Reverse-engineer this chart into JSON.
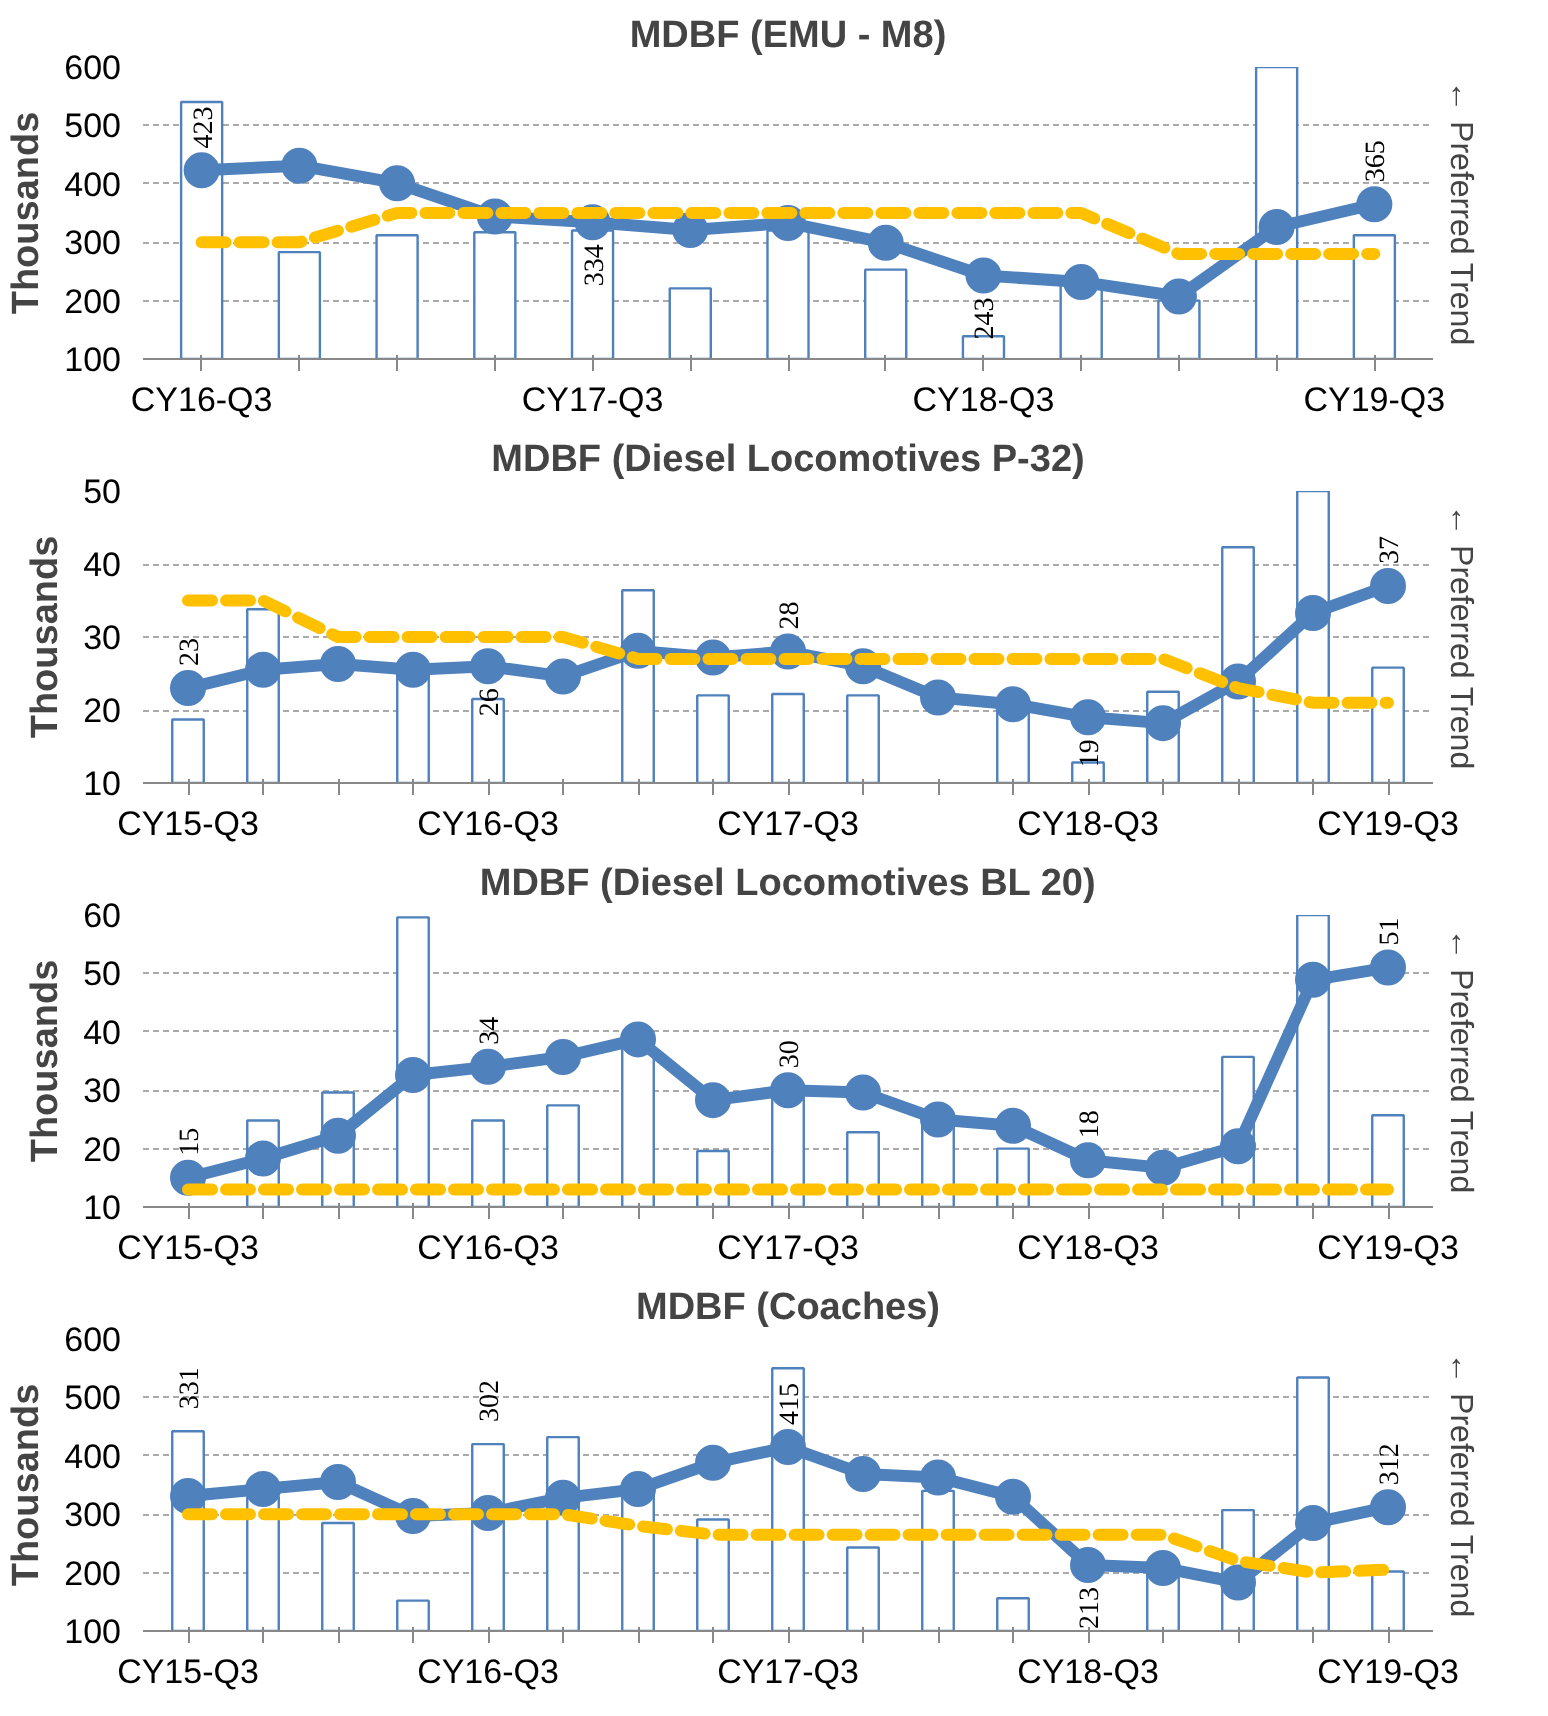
{
  "chart_data": [
    {
      "type": "bar",
      "title": "MDBF (EMU - M8)",
      "ylabel": "Thousands",
      "categories": [
        "CY16-Q3",
        null,
        null,
        null,
        "CY17-Q3",
        null,
        null,
        null,
        "CY18-Q3",
        null,
        null,
        null,
        "CY19-Q3"
      ],
      "ylim": [
        100,
        600
      ],
      "yticks": [
        100,
        200,
        300,
        400,
        500,
        600
      ],
      "grid": "y",
      "annotations": [
        "← Preferred Trend"
      ],
      "series": [
        {
          "color": "#4f81bd",
          "values": [
            540,
            283,
            312,
            317,
            320,
            221,
            320,
            253,
            139,
            230,
            200,
            600,
            312
          ]
        },
        {
          "type": "line",
          "color": "#4f81bd",
          "marker": "circle",
          "values": [
            423,
            431,
            401,
            344,
            334,
            321,
            333,
            299,
            243,
            232,
            207,
            326,
            365
          ],
          "value_labels": [
            "423",
            null,
            null,
            null,
            "334",
            null,
            null,
            null,
            "243",
            null,
            null,
            null,
            "365"
          ]
        },
        {
          "type": "line",
          "color": "#ffc000",
          "line_style": "dashed",
          "values": [
            300,
            300,
            350,
            350,
            350,
            350,
            350,
            350,
            350,
            350,
            280,
            280,
            280
          ]
        }
      ]
    },
    {
      "type": "bar",
      "title": "MDBF (Diesel Locomotives P-32)",
      "ylabel": "Thousands",
      "categories": [
        "CY15-Q3",
        null,
        null,
        null,
        "CY16-Q3",
        null,
        null,
        null,
        "CY17-Q3",
        null,
        null,
        null,
        "CY18-Q3",
        null,
        null,
        null,
        "CY19-Q3"
      ],
      "ylim": [
        10,
        50
      ],
      "yticks": [
        10,
        20,
        30,
        40,
        50
      ],
      "grid": "y",
      "annotations": [
        "← Preferred Trend"
      ],
      "series": [
        {
          "color": "#4f81bd",
          "values": [
            18.7,
            33.8,
            null,
            25,
            21.5,
            null,
            36.4,
            22,
            22.2,
            22,
            null,
            20,
            12.8,
            22.5,
            42.3,
            50,
            25.8
          ]
        },
        {
          "type": "line",
          "color": "#4f81bd",
          "marker": "circle",
          "values": [
            23,
            25.5,
            26.3,
            25.5,
            26,
            24.6,
            28.1,
            27.2,
            28,
            26,
            21.7,
            20.8,
            19,
            18.2,
            23.9,
            33.3,
            37
          ],
          "value_labels": [
            "23",
            null,
            null,
            null,
            "26",
            null,
            null,
            null,
            "28",
            null,
            null,
            null,
            "19",
            null,
            null,
            null,
            "37"
          ]
        },
        {
          "type": "line",
          "color": "#ffc000",
          "line_style": "dashed",
          "values": [
            35,
            35,
            30,
            30,
            30,
            30,
            27,
            27,
            27,
            27,
            27,
            27,
            27,
            27,
            23,
            21,
            21
          ]
        }
      ]
    },
    {
      "type": "bar",
      "title": "MDBF (Diesel Locomotives BL 20)",
      "ylabel": "Thousands",
      "categories": [
        "CY15-Q3",
        null,
        null,
        null,
        "CY16-Q3",
        null,
        null,
        null,
        "CY17-Q3",
        null,
        null,
        null,
        "CY18-Q3",
        null,
        null,
        null,
        "CY19-Q3"
      ],
      "ylim": [
        10,
        60
      ],
      "yticks": [
        10,
        20,
        30,
        40,
        50,
        60
      ],
      "grid": "y",
      "annotations": [
        "← Preferred Trend"
      ],
      "series": [
        {
          "color": "#4f81bd",
          "values": [
            null,
            24.8,
            29.6,
            59.6,
            24.8,
            27.4,
            38,
            19.6,
            30,
            22.8,
            25,
            20,
            null,
            null,
            35.7,
            60,
            25.7
          ]
        },
        {
          "type": "line",
          "color": "#4f81bd",
          "marker": "circle",
          "values": [
            15,
            18.3,
            22.2,
            32.6,
            34,
            35.7,
            38.7,
            28.3,
            30,
            29.6,
            25,
            23.9,
            18,
            16.7,
            20.4,
            48.9,
            51
          ],
          "value_labels": [
            "15",
            null,
            null,
            null,
            "34",
            null,
            null,
            null,
            "30",
            null,
            null,
            null,
            "18",
            null,
            null,
            null,
            "51"
          ]
        },
        {
          "type": "line",
          "color": "#ffc000",
          "line_style": "dashed",
          "values": [
            13,
            13,
            13,
            13,
            13,
            13,
            13,
            13,
            13,
            13,
            13,
            13,
            13,
            13,
            13,
            13,
            13
          ]
        }
      ]
    },
    {
      "type": "bar",
      "title": "MDBF (Coaches)",
      "ylabel": "Thousands",
      "categories": [
        "CY15-Q3",
        null,
        null,
        null,
        "CY16-Q3",
        null,
        null,
        null,
        "CY17-Q3",
        null,
        null,
        null,
        "CY18-Q3",
        null,
        null,
        null,
        "CY19-Q3"
      ],
      "ylim": [
        100,
        600
      ],
      "yticks": [
        100,
        200,
        300,
        400,
        500,
        600
      ],
      "grid": "y",
      "annotations": [
        "← Preferred Trend"
      ],
      "series": [
        {
          "color": "#4f81bd",
          "values": [
            442,
            330,
            285,
            152,
            420,
            432,
            340,
            291,
            550,
            243,
            340,
            156,
            null,
            200,
            307,
            534,
            202
          ]
        },
        {
          "type": "line",
          "color": "#4f81bd",
          "marker": "circle",
          "values": [
            331,
            343,
            355,
            297,
            302,
            328,
            343,
            388,
            415,
            369,
            363,
            330,
            213,
            208,
            183,
            285,
            312
          ],
          "value_labels": [
            "331",
            null,
            null,
            null,
            "302",
            null,
            null,
            null,
            "415",
            null,
            null,
            null,
            "213",
            null,
            null,
            null,
            "312"
          ]
        },
        {
          "type": "line",
          "color": "#ffc000",
          "line_style": "dashed",
          "values": [
            300,
            300,
            300,
            300,
            300,
            300,
            280,
            265,
            265,
            265,
            265,
            265,
            265,
            265,
            220,
            200,
            205
          ]
        }
      ]
    }
  ]
}
